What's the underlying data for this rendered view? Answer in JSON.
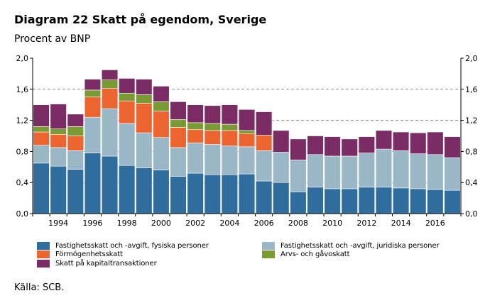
{
  "title": "Diagram 22 Skatt på egendom, Sverige",
  "subtitle": "Procent av BNP",
  "source": "Källa: SCB.",
  "chart_data": {
    "type": "bar",
    "stacked": true,
    "categories": [
      1993,
      1994,
      1995,
      1996,
      1997,
      1998,
      1999,
      2000,
      2001,
      2002,
      2003,
      2004,
      2005,
      2006,
      2007,
      2008,
      2009,
      2010,
      2011,
      2012,
      2013,
      2014,
      2015,
      2016,
      2017
    ],
    "x_tick_labels": [
      "1994",
      "1996",
      "1998",
      "2000",
      "2002",
      "2004",
      "2006",
      "2008",
      "2010",
      "2012",
      "2014",
      "2016"
    ],
    "y_tick_labels": [
      "0,0",
      "0,4",
      "0,8",
      "1,2",
      "1,6",
      "2,0"
    ],
    "ylim": [
      0,
      2.0
    ],
    "dashed_gridlines": [
      0.4,
      0.8,
      1.2,
      1.6
    ],
    "series": [
      {
        "name": "Fastighetsskatt och -avgift, fysiska personer",
        "color": "#2e6d9e",
        "values": [
          0.65,
          0.61,
          0.57,
          0.78,
          0.74,
          0.62,
          0.59,
          0.56,
          0.48,
          0.52,
          0.5,
          0.5,
          0.51,
          0.42,
          0.4,
          0.28,
          0.34,
          0.32,
          0.32,
          0.34,
          0.34,
          0.33,
          0.32,
          0.31,
          0.3
        ]
      },
      {
        "name": "Fastighetsskatt och -avgift, juridiska personer",
        "color": "#9ab7c8",
        "values": [
          0.23,
          0.24,
          0.24,
          0.46,
          0.61,
          0.54,
          0.45,
          0.42,
          0.37,
          0.39,
          0.39,
          0.37,
          0.35,
          0.39,
          0.39,
          0.41,
          0.42,
          0.42,
          0.42,
          0.44,
          0.49,
          0.48,
          0.45,
          0.45,
          0.42
        ]
      },
      {
        "name": "Förmögenhetsskatt",
        "color": "#ec6531",
        "values": [
          0.17,
          0.17,
          0.19,
          0.26,
          0.26,
          0.29,
          0.38,
          0.34,
          0.26,
          0.17,
          0.18,
          0.2,
          0.17,
          0.2,
          0.0,
          0.0,
          0.0,
          0.0,
          0.0,
          0.0,
          0.0,
          0.0,
          0.0,
          0.0,
          0.0
        ]
      },
      {
        "name": "Arvs- och gåvoskatt",
        "color": "#7a9a33",
        "values": [
          0.07,
          0.07,
          0.12,
          0.09,
          0.11,
          0.1,
          0.11,
          0.12,
          0.1,
          0.09,
          0.09,
          0.08,
          0.04,
          0.0,
          0.0,
          0.0,
          0.0,
          0.0,
          0.0,
          0.0,
          0.0,
          0.0,
          0.0,
          0.0,
          0.0
        ]
      },
      {
        "name": "Skatt på kapitaltransaktioner",
        "color": "#7b2c64",
        "values": [
          0.28,
          0.32,
          0.16,
          0.14,
          0.13,
          0.19,
          0.2,
          0.2,
          0.23,
          0.23,
          0.23,
          0.25,
          0.27,
          0.3,
          0.28,
          0.27,
          0.24,
          0.25,
          0.22,
          0.21,
          0.24,
          0.24,
          0.27,
          0.29,
          0.27
        ]
      }
    ],
    "legend_order": [
      0,
      1,
      2,
      3,
      4
    ],
    "legend_placement": "below"
  }
}
